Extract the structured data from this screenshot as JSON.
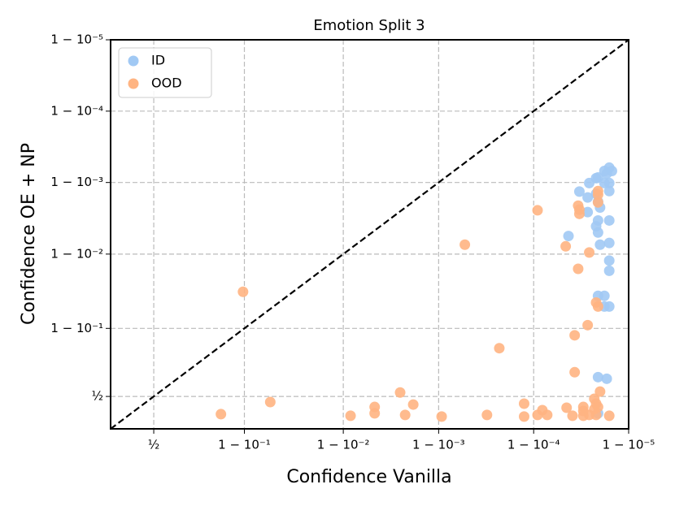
{
  "chart_data": {
    "type": "scatter",
    "title": "Emotion Split 3",
    "xlabel": "Confidence Vanilla",
    "ylabel": "Confidence OE + NP",
    "xscale": "logit",
    "yscale": "logit",
    "grid": true,
    "legend": "upper left",
    "xlim": [
      0.26,
      0.99999
    ],
    "ylim": [
      0.26,
      0.99999
    ],
    "xticks": [
      {
        "value": 0.5,
        "label": "½"
      },
      {
        "value": 0.9,
        "label": "1 − 10⁻¹"
      },
      {
        "value": 0.99,
        "label": "1 − 10⁻²"
      },
      {
        "value": 0.999,
        "label": "1 − 10⁻³"
      },
      {
        "value": 0.9999,
        "label": "1 − 10⁻⁴"
      },
      {
        "value": 0.99999,
        "label": "1 − 10⁻⁵"
      }
    ],
    "yticks": [
      {
        "value": 0.5,
        "label": "½"
      },
      {
        "value": 0.9,
        "label": "1 − 10⁻¹"
      },
      {
        "value": 0.99,
        "label": "1 − 10⁻²"
      },
      {
        "value": 0.999,
        "label": "1 − 10⁻³"
      },
      {
        "value": 0.9999,
        "label": "1 − 10⁻⁴"
      },
      {
        "value": 0.99999,
        "label": "1 − 10⁻⁵"
      }
    ],
    "series": [
      {
        "name": "ID",
        "color": "#a1c9f4",
        "x": [
          0.999984,
          0.999983,
          0.999982,
          0.999984,
          0.999985,
          0.999979,
          0.999978,
          0.999984,
          0.999982,
          0.999974,
          0.999978,
          0.999967,
          0.999973,
          0.999979,
          0.99998,
          0.999979,
          0.999978,
          0.999979,
          0.999984,
          0.99998,
          0.999984,
          0.999984,
          0.999984,
          0.999982,
          0.999979,
          0.999984,
          0.999982,
          0.999979,
          0.999983,
          0.999979,
          0.999957,
          0.999973
        ],
        "values": [
          0.99938,
          0.99925,
          0.99931,
          0.99898,
          0.99931,
          0.99915,
          0.99913,
          0.99868,
          0.99898,
          0.99898,
          0.99856,
          0.99866,
          0.9974,
          0.99814,
          0.99776,
          0.9966,
          0.9959,
          0.995,
          0.9966,
          0.9926,
          0.993,
          0.9877,
          0.983,
          0.9626,
          0.9626,
          0.948,
          0.948,
          0.651,
          0.639,
          0.367,
          0.9944,
          0.99838
        ]
      },
      {
        "name": "OOD",
        "color": "#ffb482",
        "x": [
          0.897,
          0.944,
          0.836,
          0.9916,
          0.9953,
          0.9953,
          0.99746,
          0.99775,
          0.99815,
          0.99907,
          0.99947,
          0.99969,
          0.99977,
          0.999874,
          0.999874,
          0.999909,
          0.999909,
          0.999919,
          0.999928,
          0.999954,
          0.999955,
          0.999961,
          0.999963,
          0.999963,
          0.999966,
          0.999966,
          0.999967,
          0.999967,
          0.99997,
          0.99997,
          0.999973,
          0.999974,
          0.999974,
          0.999977,
          0.999977,
          0.999978,
          0.999979,
          0.999979,
          0.999978,
          0.999979,
          0.99998,
          0.999978,
          0.999979,
          0.999984,
          0.99997,
          0.999979
        ],
        "values": [
          0.967,
          0.455,
          0.361,
          0.349,
          0.416,
          0.367,
          0.532,
          0.355,
          0.435,
          0.343,
          0.9926,
          0.355,
          0.826,
          0.442,
          0.343,
          0.99755,
          0.355,
          0.391,
          0.355,
          0.9922,
          0.41,
          0.349,
          0.878,
          0.686,
          0.984,
          0.99789,
          0.99725,
          0.9976,
          0.349,
          0.416,
          0.909,
          0.355,
          0.9905,
          0.481,
          0.398,
          0.355,
          0.99852,
          0.9981,
          0.954,
          0.948,
          0.539,
          0.442,
          0.416,
          0.349,
          0.385,
          0.99868
        ]
      }
    ]
  }
}
